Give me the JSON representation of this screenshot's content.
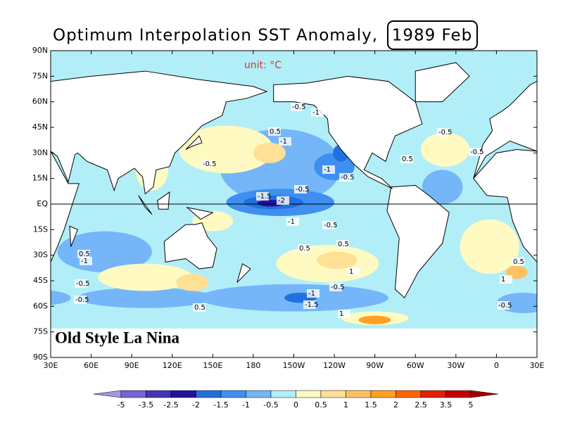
{
  "title": "Optimum Interpolation SST Anomaly,",
  "date": "1989 Feb",
  "unit": "unit: °C",
  "annotation": "Old Style La Nina",
  "lat_labels": [
    "90N",
    "75N",
    "60N",
    "45N",
    "30N",
    "15N",
    "EQ",
    "15S",
    "30S",
    "45S",
    "60S",
    "75S",
    "90S"
  ],
  "lon_labels": [
    "30E",
    "60E",
    "90E",
    "120E",
    "150E",
    "180",
    "150W",
    "120W",
    "90W",
    "60W",
    "30W",
    "0",
    "30E"
  ],
  "colorbar": {
    "labels": [
      "-5",
      "-3.5",
      "-2.5",
      "-2",
      "-1.5",
      "-1",
      "-0.5",
      "0",
      "0.5",
      "1",
      "1.5",
      "2",
      "2.5",
      "3.5",
      "5"
    ],
    "colors": [
      "#a595ea",
      "#7464d8",
      "#4434b4",
      "#2312a0",
      "#2270e0",
      "#3e8ff0",
      "#74b6f8",
      "#b2eef8",
      "#fffac2",
      "#ffe094",
      "#ffc262",
      "#ffa024",
      "#ff6400",
      "#e02200",
      "#c00000",
      "#a00000"
    ]
  },
  "contour_labels": [
    "-0.5",
    "-1",
    "0.5",
    "-1",
    "-0.5",
    "-1",
    "-0.5",
    "-1.5",
    "-2",
    "-0.5",
    "-1",
    "0.5",
    "1",
    "0.5",
    "-0.5",
    "-1",
    "-1.5",
    "1",
    "-0.5",
    "0.5",
    "-0.5",
    "0.5",
    "-0.5",
    "-1",
    "0.5",
    "-0.5",
    "-0.5",
    "0.5",
    "1",
    "-0.5"
  ]
}
